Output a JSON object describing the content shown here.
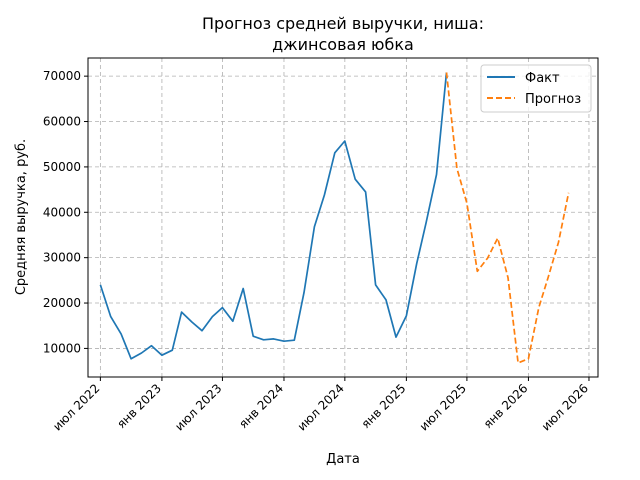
{
  "chart_data": {
    "type": "line",
    "title_lines": [
      "Прогноз средней выручки, ниша:",
      "джинсовая юбка"
    ],
    "xlabel": "Дата",
    "ylabel": "Средняя выручка, руб.",
    "x_ticks": [
      {
        "date": "2022-07-01",
        "label": "июл 2022"
      },
      {
        "date": "2023-01-01",
        "label": "янв 2023"
      },
      {
        "date": "2023-07-01",
        "label": "июл 2023"
      },
      {
        "date": "2024-01-01",
        "label": "янв 2024"
      },
      {
        "date": "2024-07-01",
        "label": "июл 2024"
      },
      {
        "date": "2025-01-01",
        "label": "янв 2025"
      },
      {
        "date": "2025-07-01",
        "label": "июл 2025"
      },
      {
        "date": "2026-01-01",
        "label": "янв 2026"
      },
      {
        "date": "2026-07-01",
        "label": "июл 2026"
      }
    ],
    "y_ticks": [
      10000,
      20000,
      30000,
      40000,
      50000,
      60000,
      70000
    ],
    "xlim": [
      "2022-05-25",
      "2026-07-28"
    ],
    "ylim": [
      3700,
      74000
    ],
    "grid": true,
    "legend_position": "top-right",
    "series": [
      {
        "name": "Факт",
        "color": "#1f77b4",
        "style": "solid",
        "points": [
          {
            "x": "2022-07-01",
            "y": 24000
          },
          {
            "x": "2022-08-01",
            "y": 17000
          },
          {
            "x": "2022-09-01",
            "y": 13200
          },
          {
            "x": "2022-10-01",
            "y": 7700
          },
          {
            "x": "2022-11-01",
            "y": 9000
          },
          {
            "x": "2022-12-01",
            "y": 10600
          },
          {
            "x": "2023-01-01",
            "y": 8500
          },
          {
            "x": "2023-02-01",
            "y": 9600
          },
          {
            "x": "2023-03-01",
            "y": 18000
          },
          {
            "x": "2023-04-01",
            "y": 15800
          },
          {
            "x": "2023-05-01",
            "y": 13900
          },
          {
            "x": "2023-06-01",
            "y": 17000
          },
          {
            "x": "2023-07-01",
            "y": 19000
          },
          {
            "x": "2023-08-01",
            "y": 16000
          },
          {
            "x": "2023-09-01",
            "y": 23200
          },
          {
            "x": "2023-10-01",
            "y": 12700
          },
          {
            "x": "2023-11-01",
            "y": 11900
          },
          {
            "x": "2023-12-01",
            "y": 12100
          },
          {
            "x": "2024-01-01",
            "y": 11600
          },
          {
            "x": "2024-02-01",
            "y": 11800
          },
          {
            "x": "2024-03-01",
            "y": 22300
          },
          {
            "x": "2024-04-01",
            "y": 36800
          },
          {
            "x": "2024-05-01",
            "y": 43800
          },
          {
            "x": "2024-06-01",
            "y": 53100
          },
          {
            "x": "2024-07-01",
            "y": 55700
          },
          {
            "x": "2024-08-01",
            "y": 47300
          },
          {
            "x": "2024-09-01",
            "y": 44500
          },
          {
            "x": "2024-10-01",
            "y": 24000
          },
          {
            "x": "2024-11-01",
            "y": 20700
          },
          {
            "x": "2024-12-01",
            "y": 12500
          },
          {
            "x": "2025-01-01",
            "y": 17200
          },
          {
            "x": "2025-02-01",
            "y": 28700
          },
          {
            "x": "2025-03-01",
            "y": 37700
          },
          {
            "x": "2025-04-01",
            "y": 48300
          },
          {
            "x": "2025-05-01",
            "y": 70800
          }
        ]
      },
      {
        "name": "Прогноз",
        "color": "#ff7f0e",
        "style": "dashed",
        "points": [
          {
            "x": "2025-05-01",
            "y": 70800
          },
          {
            "x": "2025-06-01",
            "y": 49700
          },
          {
            "x": "2025-07-01",
            "y": 42000
          },
          {
            "x": "2025-08-01",
            "y": 27000
          },
          {
            "x": "2025-09-01",
            "y": 29900
          },
          {
            "x": "2025-10-01",
            "y": 34300
          },
          {
            "x": "2025-11-01",
            "y": 25600
          },
          {
            "x": "2025-12-01",
            "y": 6800
          },
          {
            "x": "2026-01-01",
            "y": 7700
          },
          {
            "x": "2026-02-01",
            "y": 19000
          },
          {
            "x": "2026-03-01",
            "y": 25700
          },
          {
            "x": "2026-04-01",
            "y": 33400
          },
          {
            "x": "2026-05-01",
            "y": 44300
          }
        ]
      }
    ]
  }
}
